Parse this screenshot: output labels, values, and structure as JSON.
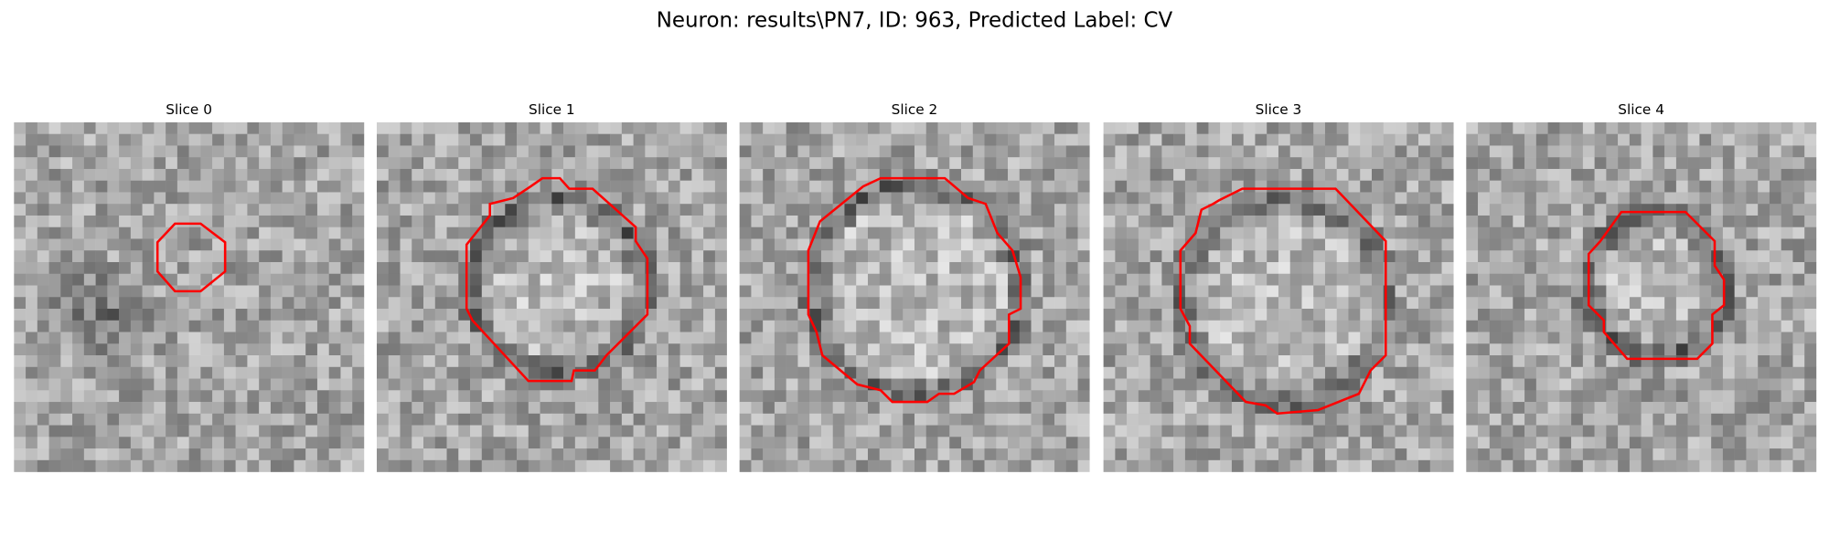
{
  "title": "Neuron: results\\PN7, ID: 963, Predicted Label: CV",
  "panels": [
    {
      "title": "Slice 0"
    },
    {
      "title": "Slice 1"
    },
    {
      "title": "Slice 2"
    },
    {
      "title": "Slice 3"
    },
    {
      "title": "Slice 4"
    }
  ]
}
